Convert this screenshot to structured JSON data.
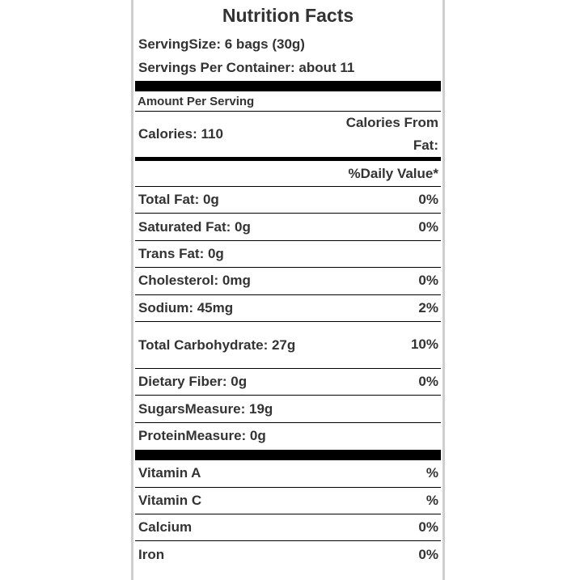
{
  "label": {
    "title": "Nutrition Facts",
    "serving_size": "ServingSize: 6 bags (30g)",
    "servings_per_container": "Servings Per Container: about 11",
    "amount_per_serving": "Amount Per Serving",
    "calories": "Calories: 110",
    "calories_from_fat": "Calories From Fat:",
    "daily_value_header": "%Daily Value*"
  },
  "nutrients": [
    {
      "label": "Total Fat: 0g",
      "dv": "0%"
    },
    {
      "label": "Saturated Fat: 0g",
      "dv": "0%"
    },
    {
      "label": "Trans Fat: 0g",
      "dv": ""
    },
    {
      "label": "Cholesterol: 0mg",
      "dv": "0%"
    },
    {
      "label": "Sodium: 45mg",
      "dv": "2%"
    },
    {
      "label": "Total Carbohydrate: 27g",
      "dv": "10%"
    },
    {
      "label": "Dietary Fiber: 0g",
      "dv": "0%"
    },
    {
      "label": "SugarsMeasure: 19g",
      "dv": ""
    },
    {
      "label": "ProteinMeasure: 0g",
      "dv": ""
    }
  ],
  "vitamins": [
    {
      "label": "Vitamin A",
      "dv": "%"
    },
    {
      "label": "Vitamin C",
      "dv": "%"
    },
    {
      "label": "Calcium",
      "dv": "0%"
    },
    {
      "label": "Iron",
      "dv": "0%"
    }
  ]
}
